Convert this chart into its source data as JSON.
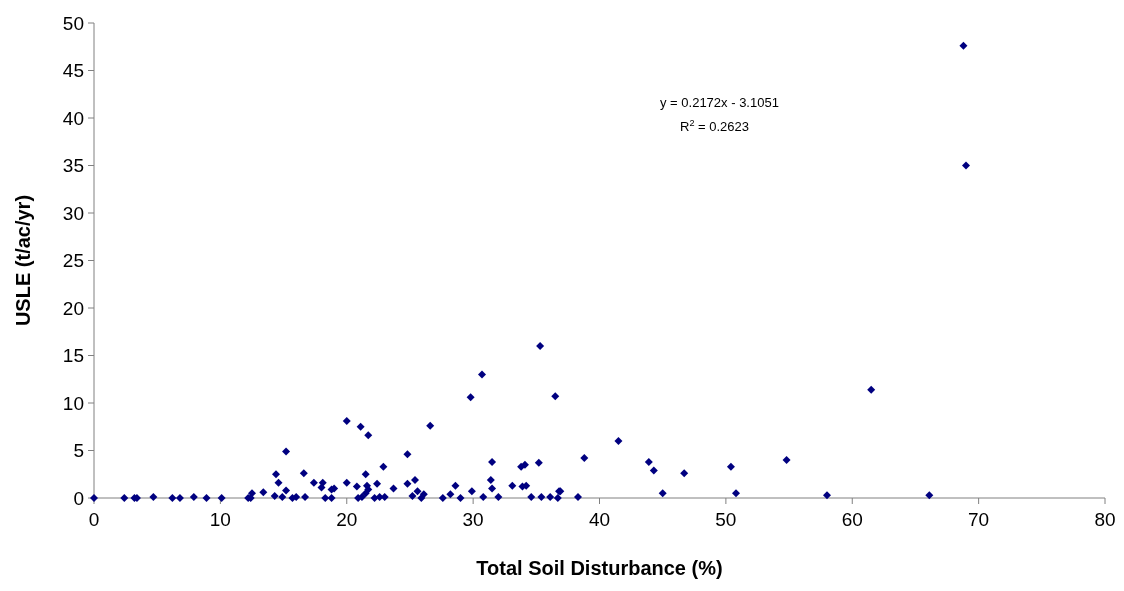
{
  "chart_data": {
    "type": "scatter",
    "xlabel": "Total Soil Disturbance (%)",
    "ylabel": "USLE (t/ac/yr)",
    "annotations": [
      "y = 0.2172x - 3.1051",
      "R$^{2}$ = 0.2623"
    ],
    "xlim": [
      0,
      80
    ],
    "xticks": [
      0,
      10,
      20,
      30,
      40,
      50,
      60,
      70,
      80
    ],
    "ylim": [
      0,
      50
    ],
    "yticks": [
      0,
      5,
      10,
      15,
      20,
      25,
      30,
      35,
      40,
      45,
      50
    ],
    "marker": "diamond",
    "series": [
      {
        "color": "#000080",
        "x": [
          0,
          2.4,
          3.2,
          3.4,
          4.7,
          6.2,
          6.8,
          7.9,
          8.9,
          10.1,
          12.2,
          12.4,
          12.5,
          13.4,
          14.4,
          14.6,
          15.2,
          14.3,
          14.9,
          15.2,
          15.7,
          16.0,
          16.6,
          16.7,
          17.4,
          18.1,
          18.0,
          18.3,
          18.8,
          18.8,
          19.0,
          20.0,
          20.0,
          20.8,
          21.1,
          21.7,
          20.9,
          21.5,
          21.6,
          21.7,
          21.5,
          21.2,
          22.4,
          22.2,
          22.6,
          22.9,
          23.0,
          23.7,
          24.8,
          24.8,
          25.2,
          25.4,
          25.6,
          25.9,
          26.1,
          26.6,
          27.6,
          28.2,
          28.6,
          29.0,
          29.8,
          29.9,
          30.7,
          30.8,
          31.4,
          31.5,
          31.5,
          32.0,
          33.1,
          33.8,
          33.9,
          34.1,
          34.2,
          34.6,
          35.2,
          35.3,
          35.4,
          36.1,
          36.5,
          36.7,
          36.8,
          36.9,
          38.3,
          38.8,
          41.5,
          43.9,
          44.3,
          45.0,
          46.7,
          50.4,
          50.8,
          54.8,
          58.0,
          61.5,
          66.1,
          68.8,
          69.0
        ],
        "values": [
          0,
          0,
          0,
          0,
          0.1,
          0,
          0,
          0.1,
          0,
          0,
          0,
          0,
          0.5,
          0.6,
          2.5,
          1.6,
          4.9,
          0.2,
          0.1,
          0.8,
          0,
          0.1,
          2.6,
          0.1,
          1.6,
          1.6,
          1.1,
          0,
          0,
          0.9,
          1.0,
          8.1,
          1.6,
          1.2,
          7.5,
          6.6,
          0,
          2.5,
          1.3,
          0.9,
          0.5,
          0.1,
          1.5,
          0,
          0.1,
          3.3,
          0.1,
          1.0,
          4.6,
          1.5,
          0.2,
          1.9,
          0.7,
          0,
          0.4,
          7.6,
          0,
          0.4,
          1.3,
          0,
          10.6,
          0.7,
          13.0,
          0.1,
          1.9,
          3.8,
          1.0,
          0.1,
          1.3,
          3.3,
          1.2,
          3.5,
          1.3,
          0.1,
          3.7,
          16.0,
          0.1,
          0.1,
          10.7,
          0,
          0.7,
          0.7,
          0.1,
          4.2,
          6.0,
          3.8,
          2.9,
          0.5,
          2.6,
          3.3,
          0.5,
          4.0,
          0.3,
          11.4,
          0.3,
          47.6,
          35.0
        ]
      }
    ]
  }
}
